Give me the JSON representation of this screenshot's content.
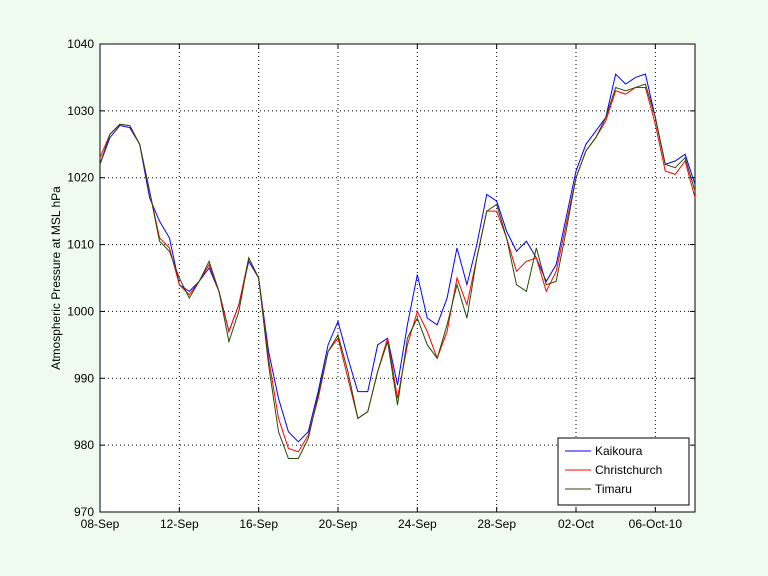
{
  "chart_data": {
    "type": "line",
    "ylabel": "Atmospheric Pressure at MSL hPa",
    "x": [
      0,
      0.5,
      1,
      1.5,
      2,
      2.5,
      3,
      3.5,
      4,
      4.5,
      5,
      5.5,
      6,
      6.5,
      7,
      7.5,
      8,
      8.5,
      9,
      9.5,
      10,
      10.5,
      11,
      11.5,
      12,
      12.5,
      13,
      13.5,
      14,
      14.5,
      15,
      15.5,
      16,
      16.5,
      17,
      17.5,
      18,
      18.5,
      19,
      19.5,
      20,
      20.5,
      21,
      21.5,
      22,
      22.5,
      23,
      23.5,
      24,
      24.5,
      25,
      25.5,
      26,
      26.5,
      27,
      27.5,
      28,
      28.5,
      29,
      29.5,
      30
    ],
    "xlim": [
      0,
      30
    ],
    "xticks": [
      {
        "value": 0,
        "label": "08-Sep"
      },
      {
        "value": 4,
        "label": "12-Sep"
      },
      {
        "value": 8,
        "label": "16-Sep"
      },
      {
        "value": 12,
        "label": "20-Sep"
      },
      {
        "value": 16,
        "label": "24-Sep"
      },
      {
        "value": 20,
        "label": "28-Sep"
      },
      {
        "value": 24,
        "label": "02-Oct"
      },
      {
        "value": 28,
        "label": "06-Oct-10"
      }
    ],
    "ylim": [
      970,
      1040
    ],
    "yticks": [
      970,
      980,
      990,
      1000,
      1010,
      1020,
      1030,
      1040
    ],
    "grid": true,
    "legend": "lower right",
    "series": [
      {
        "name": "Kaikoura",
        "color": "#0000ff",
        "values": [
          1022,
          1026,
          1027.8,
          1027.5,
          1025,
          1017,
          1013.5,
          1011,
          1004,
          1003,
          1004.5,
          1006.5,
          1003,
          997,
          1001,
          1007.5,
          1005,
          994,
          987,
          982,
          980.5,
          982,
          988,
          995,
          998.5,
          993,
          988,
          988,
          995,
          996,
          989,
          998,
          1005.5,
          999,
          998,
          1002,
          1009.5,
          1004,
          1010,
          1017.5,
          1016.5,
          1012,
          1009,
          1010.5,
          1008,
          1004.5,
          1007,
          1014,
          1021,
          1025,
          1027,
          1029,
          1035.5,
          1034,
          1035,
          1035.5,
          1029,
          1022,
          1022.5,
          1023.5,
          1019
        ]
      },
      {
        "name": "Christchurch",
        "color": "#ff0000",
        "values": [
          1023,
          1026.5,
          1028,
          1027.8,
          1025,
          1018,
          1011,
          1009.5,
          1004,
          1002.5,
          1004.5,
          1007,
          1003,
          997,
          1001,
          1008,
          1005,
          993,
          984,
          979.5,
          979,
          981.5,
          987,
          994,
          996,
          990,
          984,
          985,
          991,
          996,
          987,
          995,
          1000,
          997,
          993,
          997,
          1005,
          1001,
          1008,
          1015,
          1015,
          1011,
          1006,
          1007.5,
          1008,
          1003,
          1006,
          1013,
          1020,
          1024,
          1026,
          1028.5,
          1033,
          1032.5,
          1033.5,
          1033.5,
          1028,
          1021,
          1020.5,
          1022.5,
          1017
        ]
      },
      {
        "name": "Timaru",
        "color": "#264d00",
        "values": [
          1022,
          1026.5,
          1028,
          1027.8,
          1025,
          1018,
          1010.5,
          1009,
          1005,
          1002,
          1004.5,
          1007.5,
          1003,
          995.5,
          1000,
          1008,
          1005,
          992,
          982,
          978,
          978,
          981,
          987.5,
          994,
          996.5,
          991,
          984,
          985,
          991,
          995.5,
          986,
          996,
          999,
          995,
          993,
          998,
          1004,
          999,
          1008,
          1015,
          1016,
          1011,
          1004,
          1003,
          1009.5,
          1004,
          1004.5,
          1012,
          1020,
          1024,
          1026,
          1029,
          1033.5,
          1033,
          1033.5,
          1034,
          1029,
          1022,
          1021.5,
          1023,
          1018
        ]
      }
    ]
  }
}
